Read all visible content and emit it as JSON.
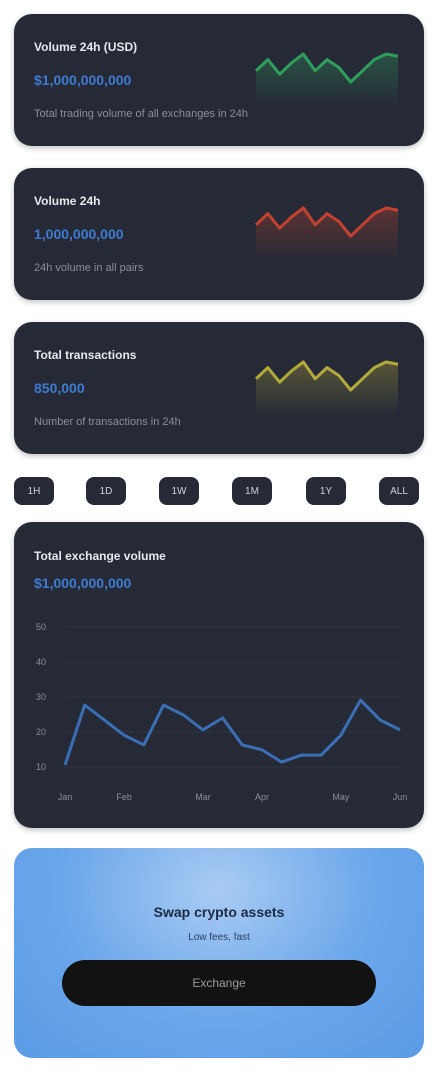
{
  "stat_cards": [
    {
      "title": "Volume 24h (USD)",
      "value": "$1,000,000,000",
      "description": "Total trading volume of all exchanges in 24h",
      "sparkline": {
        "type": "line",
        "color": "#2f9e5c",
        "values": [
          15,
          25,
          12,
          22,
          30,
          15,
          25,
          18,
          5,
          15,
          25,
          30,
          28
        ]
      }
    },
    {
      "title": "Volume 24h",
      "value": "1,000,000,000",
      "description": "24h volume in all pairs",
      "sparkline": {
        "type": "line",
        "color": "#c2412f",
        "values": [
          15,
          25,
          12,
          22,
          30,
          15,
          25,
          18,
          5,
          15,
          25,
          30,
          28
        ]
      }
    },
    {
      "title": "Total transactions",
      "value": "850,000",
      "description": "Number of transactions in 24h",
      "sparkline": {
        "type": "line",
        "color": "#b3a83a",
        "values": [
          15,
          25,
          12,
          22,
          30,
          15,
          25,
          18,
          5,
          15,
          25,
          30,
          28
        ]
      }
    }
  ],
  "time_filters": [
    "1H",
    "1D",
    "1W",
    "1M",
    "1Y",
    "ALL"
  ],
  "main_chart": {
    "title": "Total exchange volume",
    "value": "$1,000,000,000",
    "chart_data": {
      "type": "line",
      "color": "#3a6fb5",
      "categories": [
        "Jan",
        null,
        null,
        "Feb",
        null,
        null,
        null,
        "Mar",
        null,
        null,
        "Apr",
        null,
        null,
        null,
        "May",
        null,
        null,
        "Jun"
      ],
      "values": [
        10.6,
        27.7,
        23.4,
        19.1,
        16.3,
        27.7,
        24.9,
        20.6,
        24,
        16.3,
        14.9,
        11.4,
        13.4,
        13.4,
        19.1,
        29.1,
        23.4,
        20.6
      ],
      "ylim": [
        10,
        50
      ],
      "yticks": [
        10,
        20,
        30,
        40,
        50
      ]
    }
  },
  "cta": {
    "title": "Swap crypto assets",
    "subtitle": "Low fees, fast",
    "button": "Exchange"
  }
}
